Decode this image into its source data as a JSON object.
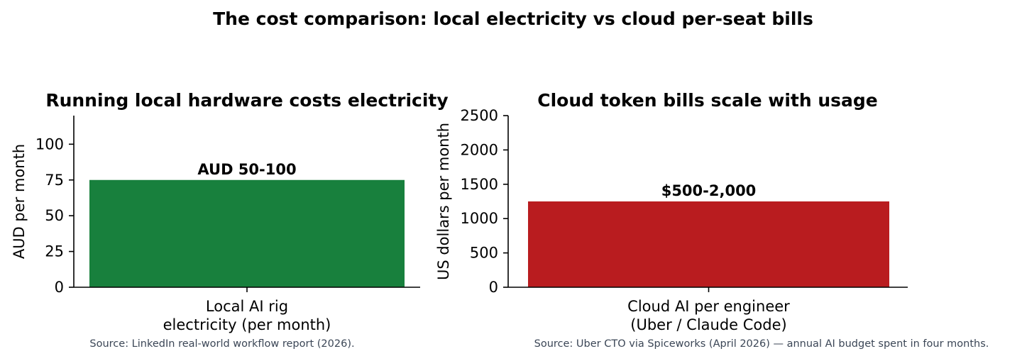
{
  "figure": {
    "title": "The cost comparison: local electricity vs cloud per-seat bills"
  },
  "chart_data": [
    {
      "type": "bar",
      "title": "Running local hardware costs electricity",
      "xlabel": "",
      "ylabel": "AUD per month",
      "categories": [
        "Local AI rig\nelectricity (per month)"
      ],
      "values": [
        75
      ],
      "bar_labels": [
        "AUD 50-100"
      ],
      "ylim": [
        0,
        120
      ],
      "yticks": [
        0,
        25,
        50,
        75,
        100
      ],
      "grid": false,
      "color": "#18803d",
      "source": "Source: LinkedIn real-world workflow report (2026)."
    },
    {
      "type": "bar",
      "title": "Cloud token bills scale with usage",
      "xlabel": "",
      "ylabel": "US dollars per month",
      "categories": [
        "Cloud AI per engineer\n(Uber / Claude Code)"
      ],
      "values": [
        1250
      ],
      "bar_labels": [
        "$500-2,000"
      ],
      "ylim": [
        0,
        2500
      ],
      "yticks": [
        0,
        500,
        1000,
        1500,
        2000,
        2500
      ],
      "grid": false,
      "color": "#b91c1f",
      "source": "Source: Uber CTO via Spiceworks (April 2026) — annual AI budget spent in four months."
    }
  ]
}
